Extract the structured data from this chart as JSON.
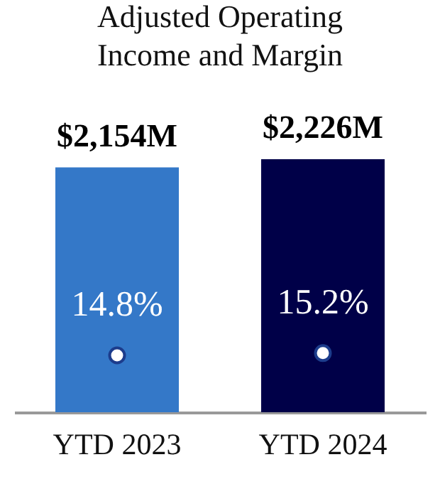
{
  "chart_data": {
    "type": "bar",
    "title": "Adjusted Operating Income and Margin",
    "categories": [
      "YTD 2023",
      "YTD 2024"
    ],
    "series": [
      {
        "colors": [
          "#3478c8",
          "#000048"
        ],
        "values": [
          2154,
          2226
        ],
        "value_labels": [
          "$2,154M",
          "$2,226M"
        ]
      }
    ],
    "annotations": [
      {
        "text": "14.8%",
        "x": "YTD 2023",
        "y": 500
      },
      {
        "text": "15.2%",
        "x": "YTD 2024",
        "y": 520
      }
    ],
    "tick_labels": "x"
  }
}
